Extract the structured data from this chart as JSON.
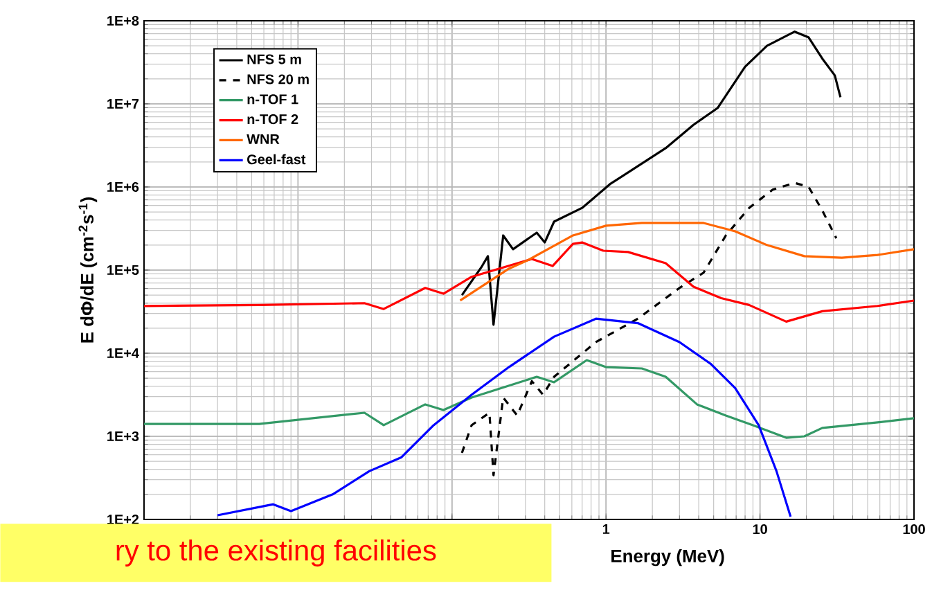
{
  "chart_data": {
    "type": "line",
    "xlabel": "Energy (MeV)",
    "ylabel": "E dΦ/dE (cm$^{-2}$s$^{-1}$)",
    "annotations": [
      "ry to the existing facilities"
    ],
    "log": "xy",
    "grid": true,
    "legend": "top left",
    "marker": "none",
    "xlim": [
      0.001,
      100
    ],
    "ylim": [
      100,
      100000000
    ],
    "xticks": [
      {
        "value": 0.001,
        "label": null
      },
      {
        "value": 0.01,
        "label": null
      },
      {
        "value": 0.1,
        "label": null
      },
      1,
      10,
      100
    ],
    "yticks": [
      {
        "value": 100,
        "label": "1E+2"
      },
      {
        "value": 1000,
        "label": "1E+3"
      },
      {
        "value": 10000,
        "label": "1E+4"
      },
      {
        "value": 100000,
        "label": "1E+5"
      },
      {
        "value": 1000000,
        "label": "1E+6"
      },
      {
        "value": 10000000,
        "label": "1E+7"
      },
      {
        "value": 100000000,
        "label": "1E+8"
      }
    ],
    "series": [
      {
        "name": "NFS 5 m",
        "color": "#000000",
        "line_style": "solid",
        "x": [
          0.116,
          0.155,
          0.171,
          0.186,
          0.215,
          0.249,
          0.355,
          0.4,
          0.46,
          0.7,
          1.06,
          1.61,
          2.44,
          3.7,
          5.3,
          8.0,
          11.1,
          16.8,
          20.7,
          25.4,
          30.6,
          33.3
        ],
        "values": [
          50000,
          108000,
          147000,
          22000,
          261000,
          178000,
          282000,
          215000,
          383000,
          560000,
          1080000,
          1780000,
          2930000,
          5600000,
          8900000,
          28000000,
          50000000,
          74000000,
          63000000,
          35000000,
          22000000,
          12000000
        ]
      },
      {
        "name": "NFS 20 m",
        "color": "#000000",
        "line_style": "dashed",
        "x": [
          0.116,
          0.134,
          0.175,
          0.186,
          0.215,
          0.265,
          0.33,
          0.39,
          0.46,
          0.86,
          1.61,
          3.0,
          4.3,
          6.0,
          8.5,
          12.1,
          16.8,
          20.7,
          25.4,
          31.3
        ],
        "values": [
          630,
          1360,
          1920,
          340,
          2930,
          1780,
          4600,
          3160,
          5200,
          13600,
          26000,
          61000,
          93000,
          261000,
          560000,
          930000,
          1120000,
          1000000,
          520000,
          242000
        ]
      },
      {
        "name": "n-TOF 1",
        "color": "#339966",
        "line_style": "solid",
        "x": [
          0.001,
          0.0056,
          0.027,
          0.036,
          0.067,
          0.088,
          0.134,
          0.355,
          0.46,
          0.75,
          1.0,
          1.71,
          2.44,
          3.9,
          6.0,
          9.0,
          14.8,
          19.4,
          25.4,
          58,
          100
        ],
        "values": [
          1410,
          1410,
          1920,
          1360,
          2420,
          2070,
          2930,
          5200,
          4470,
          8250,
          6800,
          6550,
          5200,
          2420,
          1780,
          1360,
          960,
          1000,
          1260,
          1470,
          1650
        ]
      },
      {
        "name": "n-TOF 2",
        "color": "#ff0000",
        "line_style": "solid",
        "x": [
          0.001,
          0.0056,
          0.027,
          0.036,
          0.067,
          0.088,
          0.134,
          0.33,
          0.45,
          0.61,
          0.7,
          0.96,
          1.39,
          2.44,
          3.7,
          5.6,
          8.5,
          14.8,
          25.4,
          58,
          100
        ],
        "values": [
          37000,
          38000,
          40000,
          34000,
          61000,
          52000,
          83000,
          136000,
          112000,
          207000,
          215000,
          171000,
          165000,
          121000,
          63000,
          46000,
          38000,
          24000,
          32000,
          37000,
          43000
        ]
      },
      {
        "name": "WNR",
        "color": "#ff6600",
        "line_style": "solid",
        "x": [
          0.113,
          0.234,
          0.31,
          0.61,
          1.0,
          1.71,
          4.3,
          6.9,
          11.1,
          19.4,
          34,
          58,
          100
        ],
        "values": [
          43000,
          104000,
          131000,
          261000,
          342000,
          369000,
          369000,
          293000,
          200000,
          147000,
          141000,
          152000,
          178000
        ]
      },
      {
        "name": "Geel-fast",
        "color": "#0000ff",
        "line_style": "solid",
        "x": [
          0.003,
          0.0069,
          0.009,
          0.0168,
          0.029,
          0.047,
          0.076,
          0.134,
          0.234,
          0.46,
          0.86,
          1.61,
          3.0,
          4.8,
          6.9,
          9.8,
          12.8,
          15.8
        ],
        "values": [
          112,
          152,
          126,
          200,
          380,
          560,
          1360,
          3160,
          6800,
          15800,
          26000,
          23000,
          13600,
          7400,
          3800,
          1360,
          380,
          108
        ]
      }
    ]
  }
}
